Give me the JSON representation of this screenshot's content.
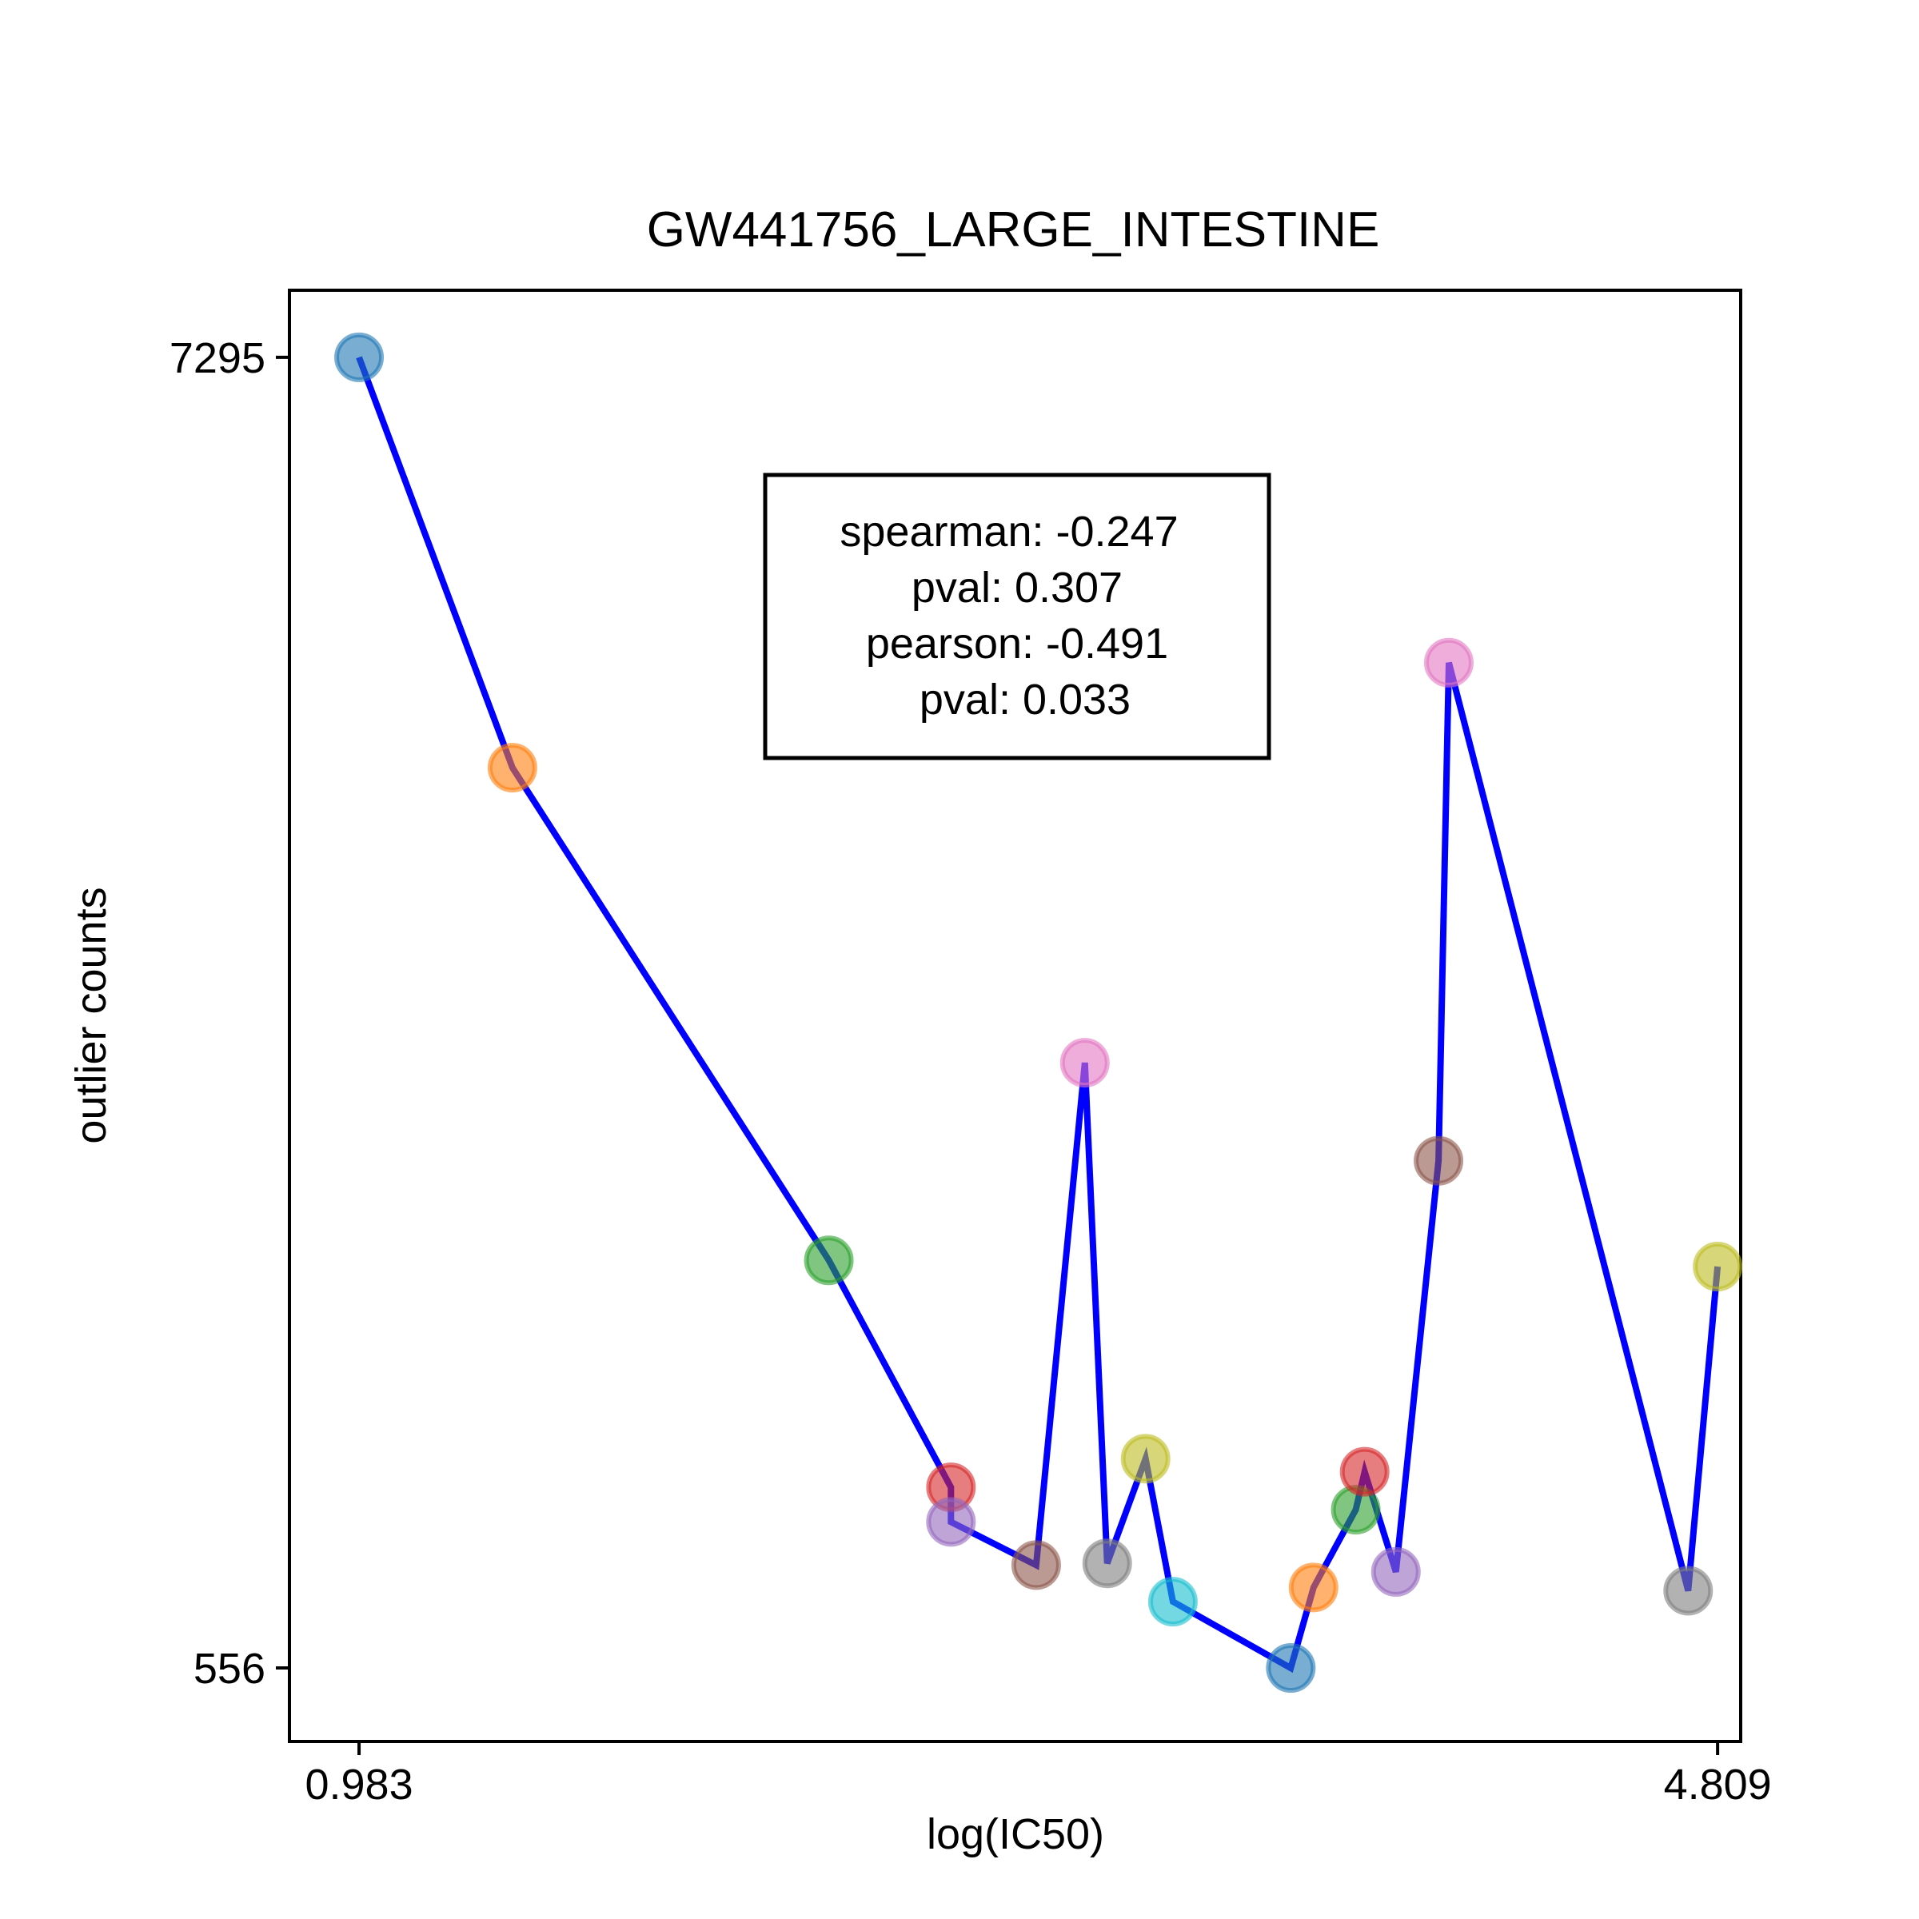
{
  "chart_data": {
    "type": "scatter",
    "title": "GW441756_LARGE_INTESTINE",
    "xlabel": "log(IC50)",
    "ylabel": "outlier counts",
    "xlim": [
      0.787,
      4.874
    ],
    "ylim": [
      178,
      7640
    ],
    "x_ticks": [
      {
        "value": 0.983,
        "label": "0.983"
      },
      {
        "value": 4.809,
        "label": "4.809"
      }
    ],
    "y_ticks": [
      {
        "value": 556,
        "label": "556"
      },
      {
        "value": 7295,
        "label": "7295"
      }
    ],
    "grid": false,
    "line_color": "#0000ff",
    "stats_box": {
      "lines": [
        "spearman: -0.247",
        "pval: 0.307",
        "pearson: -0.491",
        "pval: 0.033"
      ]
    },
    "points": [
      {
        "x": 0.983,
        "y": 7295,
        "color": "#1f77b4"
      },
      {
        "x": 1.415,
        "y": 5185,
        "color": "#ff7f0e"
      },
      {
        "x": 2.306,
        "y": 2652,
        "color": "#2ca02c"
      },
      {
        "x": 2.65,
        "y": 1485,
        "color": "#d62728"
      },
      {
        "x": 2.65,
        "y": 1307,
        "color": "#9467bd"
      },
      {
        "x": 2.89,
        "y": 1085,
        "color": "#8c564b"
      },
      {
        "x": 3.027,
        "y": 3668,
        "color": "#e377c2"
      },
      {
        "x": 3.09,
        "y": 1094,
        "color": "#7f7f7f"
      },
      {
        "x": 3.198,
        "y": 1632,
        "color": "#bcbd22"
      },
      {
        "x": 3.275,
        "y": 897,
        "color": "#17becf"
      },
      {
        "x": 3.607,
        "y": 556,
        "color": "#1f77b4"
      },
      {
        "x": 3.671,
        "y": 970,
        "color": "#ff7f0e"
      },
      {
        "x": 3.79,
        "y": 1370,
        "color": "#2ca02c"
      },
      {
        "x": 3.815,
        "y": 1565,
        "color": "#d62728"
      },
      {
        "x": 3.903,
        "y": 1050,
        "color": "#9467bd"
      },
      {
        "x": 4.023,
        "y": 3164,
        "color": "#8c564b"
      },
      {
        "x": 4.052,
        "y": 5725,
        "color": "#e377c2"
      },
      {
        "x": 4.726,
        "y": 953,
        "color": "#7f7f7f"
      },
      {
        "x": 4.809,
        "y": 2620,
        "color": "#bcbd22"
      }
    ]
  }
}
